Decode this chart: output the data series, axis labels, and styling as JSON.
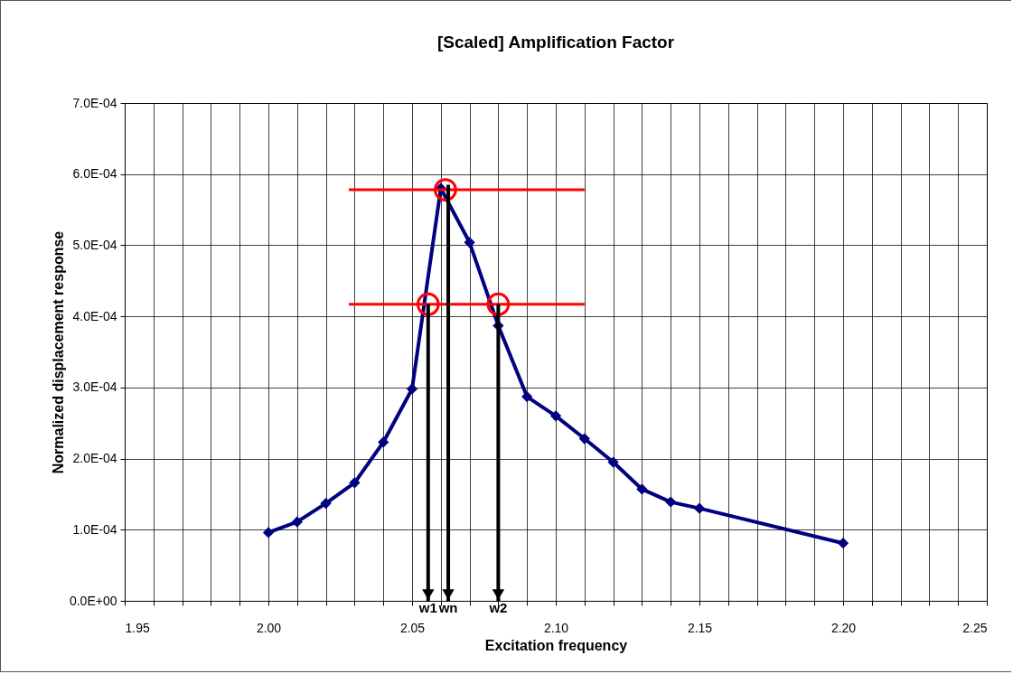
{
  "chart_data": {
    "type": "line",
    "title": "[Scaled] Amplification Factor",
    "xlabel": "Excitation frequency",
    "ylabel": "Normalized displacement response",
    "x": [
      2.0,
      2.01,
      2.02,
      2.03,
      2.04,
      2.05,
      2.06,
      2.07,
      2.08,
      2.09,
      2.1,
      2.11,
      2.12,
      2.13,
      2.14,
      2.15,
      2.2
    ],
    "series": [
      {
        "color": "#000080",
        "values": [
          9.6e-05,
          0.000111,
          0.000137,
          0.000166,
          0.000223,
          0.000298,
          0.00058,
          0.000504,
          0.000387,
          0.000287,
          0.00026,
          0.000228,
          0.000195,
          0.000157,
          0.000139,
          0.00013,
          8.1e-05
        ]
      },
      {
        "type": "line",
        "marker": "none",
        "color": "#ff0000",
        "x": [
          2.028,
          2.11
        ],
        "values": [
          0.000578,
          0.000578
        ]
      },
      {
        "type": "line",
        "marker": "none",
        "color": "#ff0000",
        "x": [
          2.028,
          2.11
        ],
        "values": [
          0.000417,
          0.000417
        ]
      },
      {
        "type": "scatter",
        "marker": "circle",
        "color": "#ff0000",
        "x": [
          2.0556,
          2.0616,
          2.08
        ],
        "values": [
          0.000417,
          0.000578,
          0.000417
        ]
      }
    ],
    "marker": "diamond",
    "grid": true,
    "xlim": [
      1.95,
      2.25
    ],
    "xticks": [
      {
        "value": 1.95,
        "label": "1.95"
      },
      {
        "value": 1.96,
        "label": null
      },
      {
        "value": 1.97,
        "label": null
      },
      {
        "value": 1.98,
        "label": null
      },
      {
        "value": 1.99,
        "label": null
      },
      {
        "value": 2.0,
        "label": "2.00"
      },
      {
        "value": 2.01,
        "label": null
      },
      {
        "value": 2.02,
        "label": null
      },
      {
        "value": 2.03,
        "label": null
      },
      {
        "value": 2.04,
        "label": null
      },
      {
        "value": 2.05,
        "label": "2.05"
      },
      {
        "value": 2.06,
        "label": null
      },
      {
        "value": 2.07,
        "label": null
      },
      {
        "value": 2.08,
        "label": null
      },
      {
        "value": 2.09,
        "label": null
      },
      {
        "value": 2.1,
        "label": "2.10"
      },
      {
        "value": 2.11,
        "label": null
      },
      {
        "value": 2.12,
        "label": null
      },
      {
        "value": 2.13,
        "label": null
      },
      {
        "value": 2.14,
        "label": null
      },
      {
        "value": 2.15,
        "label": "2.15"
      },
      {
        "value": 2.16,
        "label": null
      },
      {
        "value": 2.17,
        "label": null
      },
      {
        "value": 2.18,
        "label": null
      },
      {
        "value": 2.19,
        "label": null
      },
      {
        "value": 2.2,
        "label": "2.20"
      },
      {
        "value": 2.21,
        "label": null
      },
      {
        "value": 2.22,
        "label": null
      },
      {
        "value": 2.23,
        "label": null
      },
      {
        "value": 2.24,
        "label": null
      },
      {
        "value": 2.25,
        "label": "2.25"
      }
    ],
    "ylim": [
      0,
      0.0007
    ],
    "yticks": [
      {
        "value": 0,
        "label": "0.0E+00"
      },
      {
        "value": 0.0001,
        "label": "1.0E-04"
      },
      {
        "value": 0.0002,
        "label": "2.0E-04"
      },
      {
        "value": 0.0003,
        "label": "3.0E-04"
      },
      {
        "value": 0.0004,
        "label": "4.0E-04"
      },
      {
        "value": 0.0005,
        "label": "5.0E-04"
      },
      {
        "value": 0.0006,
        "label": "6.0E-04"
      },
      {
        "value": 0.0007,
        "label": "7.0E-04"
      }
    ],
    "annotations": [
      {
        "text": "w1",
        "x": 2.0556,
        "y": 0.000417
      },
      {
        "text": "wn",
        "x": 2.0626,
        "y": 0.000585
      },
      {
        "text": "w2",
        "x": 2.08,
        "y": 0.000417
      }
    ]
  }
}
